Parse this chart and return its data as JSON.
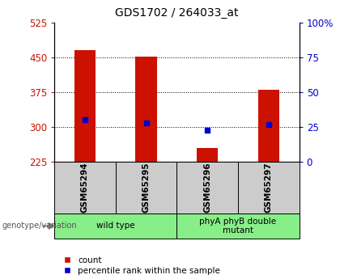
{
  "title": "GDS1702 / 264033_at",
  "samples": [
    "GSM65294",
    "GSM65295",
    "GSM65296",
    "GSM65297"
  ],
  "counts": [
    465,
    452,
    255,
    380
  ],
  "percentiles": [
    315,
    308,
    293,
    305
  ],
  "y_min": 225,
  "y_max": 525,
  "y_ticks": [
    225,
    300,
    375,
    450,
    525
  ],
  "y2_ticks": [
    0,
    25,
    50,
    75,
    100
  ],
  "bar_color": "#cc1100",
  "dot_color": "#0000cc",
  "groups": [
    {
      "label": "wild type",
      "samples": [
        0,
        1
      ]
    },
    {
      "label": "phyA phyB double\nmutant",
      "samples": [
        2,
        3
      ]
    }
  ],
  "group_bg": "#88ee88",
  "sample_bg": "#cccccc",
  "bar_width": 0.35,
  "left_label_color": "#cc1100",
  "right_label_color": "#0000cc",
  "grid_color": "#000000",
  "legend_count_label": "count",
  "legend_pct_label": "percentile rank within the sample",
  "genotype_label": "genotype/variation"
}
